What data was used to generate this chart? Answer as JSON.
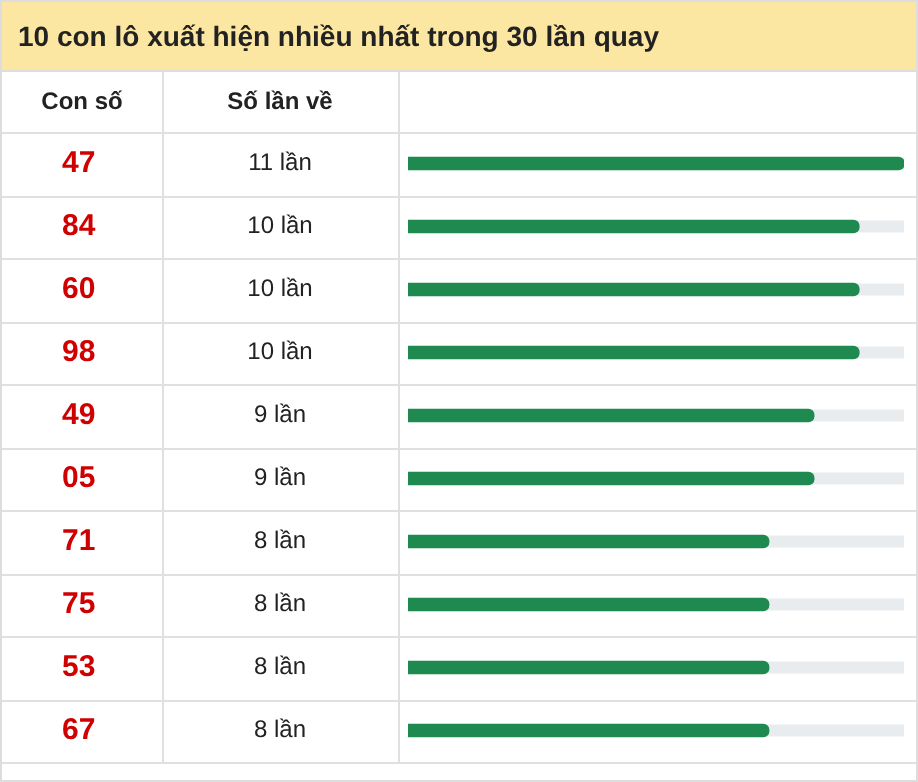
{
  "chart_data": {
    "type": "bar",
    "orientation": "horizontal",
    "title": "10 con lô xuất hiện nhiều nhất trong 30 lần quay",
    "annotations": [
      "Con số",
      "Số lần về"
    ],
    "categories": [
      "47",
      "84",
      "60",
      "98",
      "49",
      "05",
      "71",
      "75",
      "53",
      "67"
    ],
    "values": [
      11,
      10,
      10,
      10,
      9,
      9,
      8,
      8,
      8,
      8
    ],
    "value_labels": [
      "11 lần",
      "10 lần",
      "10 lần",
      "10 lần",
      "9 lần",
      "9 lần",
      "8 lần",
      "8 lần",
      "8 lần",
      "8 lần"
    ],
    "color": "#1e8a4f",
    "xlim": [
      0,
      11
    ],
    "grid": false,
    "legend": false
  }
}
